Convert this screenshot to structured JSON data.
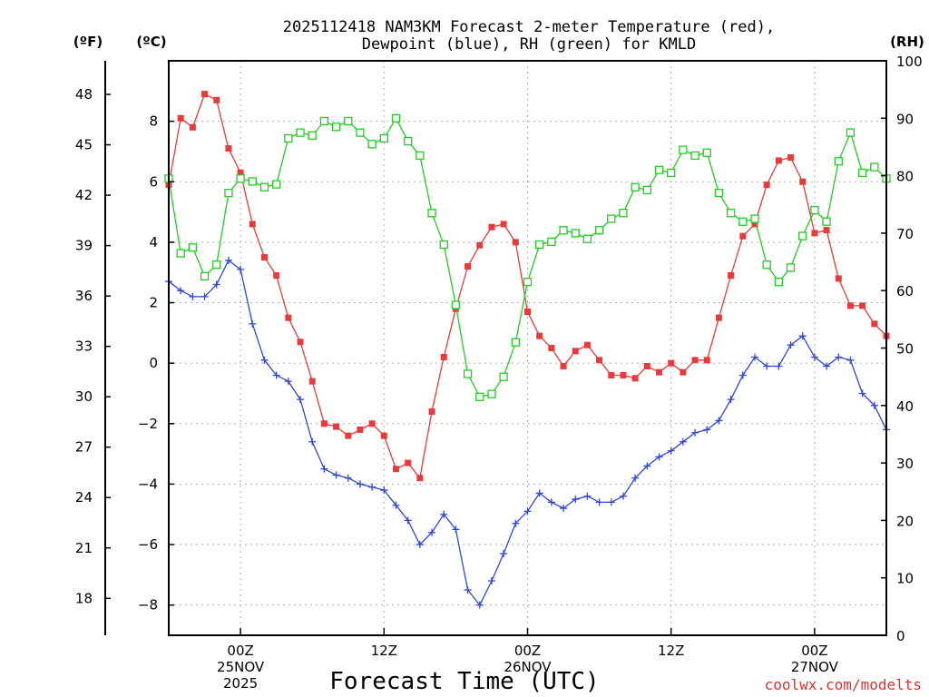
{
  "chart_data": {
    "type": "line",
    "title": "2025112418 NAM3KM Forecast 2-meter Temperature (red),",
    "subtitle": "Dewpoint (blue), RH (green) for KMLD",
    "xlabel": "Forecast Time (UTC)",
    "credit": "coolwx.com/modelts",
    "units": {
      "fahrenheit": "(ºF)",
      "celsius": "(ºC)",
      "rh": "(RH)"
    },
    "x_range_hours": [
      0,
      60
    ],
    "x_ticks": [
      {
        "hour": 6,
        "lines": [
          "00Z",
          "25NOV",
          "2025"
        ]
      },
      {
        "hour": 18,
        "lines": [
          "12Z"
        ]
      },
      {
        "hour": 30,
        "lines": [
          "00Z",
          "26NOV"
        ]
      },
      {
        "hour": 42,
        "lines": [
          "12Z"
        ]
      },
      {
        "hour": 54,
        "lines": [
          "00Z",
          "27NOV"
        ]
      }
    ],
    "ylim_c": [
      -9,
      10
    ],
    "ylim_rh": [
      0,
      100
    ],
    "yticks_c": [
      -8,
      -6,
      -4,
      -2,
      0,
      2,
      4,
      6,
      8
    ],
    "yticks_f": [
      18,
      21,
      24,
      27,
      30,
      33,
      36,
      39,
      42,
      45,
      48
    ],
    "yticks_rh": [
      0,
      10,
      20,
      30,
      40,
      50,
      60,
      70,
      80,
      90,
      100
    ],
    "colors": {
      "temperature": "#e83a3a",
      "dewpoint": "#2f46d8",
      "rh": "#22cc22"
    },
    "series": [
      {
        "name": "Temperature (°C)",
        "axis": "c",
        "color_key": "temperature",
        "values": [
          5.9,
          8.1,
          7.8,
          8.9,
          8.7,
          7.1,
          6.3,
          4.6,
          3.5,
          2.9,
          1.5,
          0.7,
          -0.6,
          -2.0,
          -2.1,
          -2.4,
          -2.2,
          -2.0,
          -2.4,
          -3.5,
          -3.3,
          -3.8,
          -1.6,
          0.2,
          1.8,
          3.2,
          3.9,
          4.5,
          4.6,
          4.0,
          1.7,
          0.9,
          0.5,
          -0.1,
          0.4,
          0.6,
          0.1,
          -0.4,
          -0.4,
          -0.5,
          -0.1,
          -0.3,
          0.0,
          -0.3,
          0.1,
          0.1,
          1.5,
          2.9,
          4.2,
          4.6,
          5.9,
          6.7,
          6.8,
          6.0,
          4.3,
          4.4,
          2.8,
          1.9,
          1.9,
          1.3,
          0.9
        ]
      },
      {
        "name": "Dewpoint (°C)",
        "axis": "c",
        "color_key": "dewpoint",
        "values": [
          2.7,
          2.4,
          2.2,
          2.2,
          2.6,
          3.4,
          3.1,
          1.3,
          0.1,
          -0.4,
          -0.6,
          -1.2,
          -2.6,
          -3.5,
          -3.7,
          -3.8,
          -4.0,
          -4.1,
          -4.2,
          -4.7,
          -5.2,
          -6.0,
          -5.6,
          -5.0,
          -5.5,
          -7.5,
          -8.0,
          -7.2,
          -6.3,
          -5.3,
          -4.9,
          -4.3,
          -4.6,
          -4.8,
          -4.5,
          -4.4,
          -4.6,
          -4.6,
          -4.4,
          -3.8,
          -3.4,
          -3.1,
          -2.9,
          -2.6,
          -2.3,
          -2.2,
          -1.9,
          -1.2,
          -0.4,
          0.2,
          -0.1,
          -0.1,
          0.6,
          0.9,
          0.2,
          -0.1,
          0.2,
          0.1,
          -1.0,
          -1.4,
          -2.2
        ]
      },
      {
        "name": "RH (%)",
        "axis": "rh",
        "color_key": "rh",
        "values": [
          79.5,
          66.5,
          67.5,
          62.5,
          64.5,
          77.0,
          79.5,
          79.0,
          78.0,
          78.5,
          86.5,
          87.5,
          87.0,
          89.5,
          88.5,
          89.5,
          87.5,
          85.5,
          86.5,
          90.0,
          86.0,
          83.5,
          73.5,
          68.0,
          57.5,
          45.5,
          41.5,
          42.0,
          45.0,
          51.0,
          61.5,
          68.0,
          68.5,
          70.5,
          70.0,
          69.0,
          70.5,
          72.5,
          73.5,
          78.0,
          77.5,
          81.0,
          80.5,
          84.5,
          83.5,
          84.0,
          77.0,
          73.5,
          72.0,
          72.5,
          64.5,
          61.5,
          64.0,
          69.5,
          74.0,
          72.0,
          82.5,
          87.5,
          80.5,
          81.5,
          79.5
        ]
      }
    ]
  }
}
